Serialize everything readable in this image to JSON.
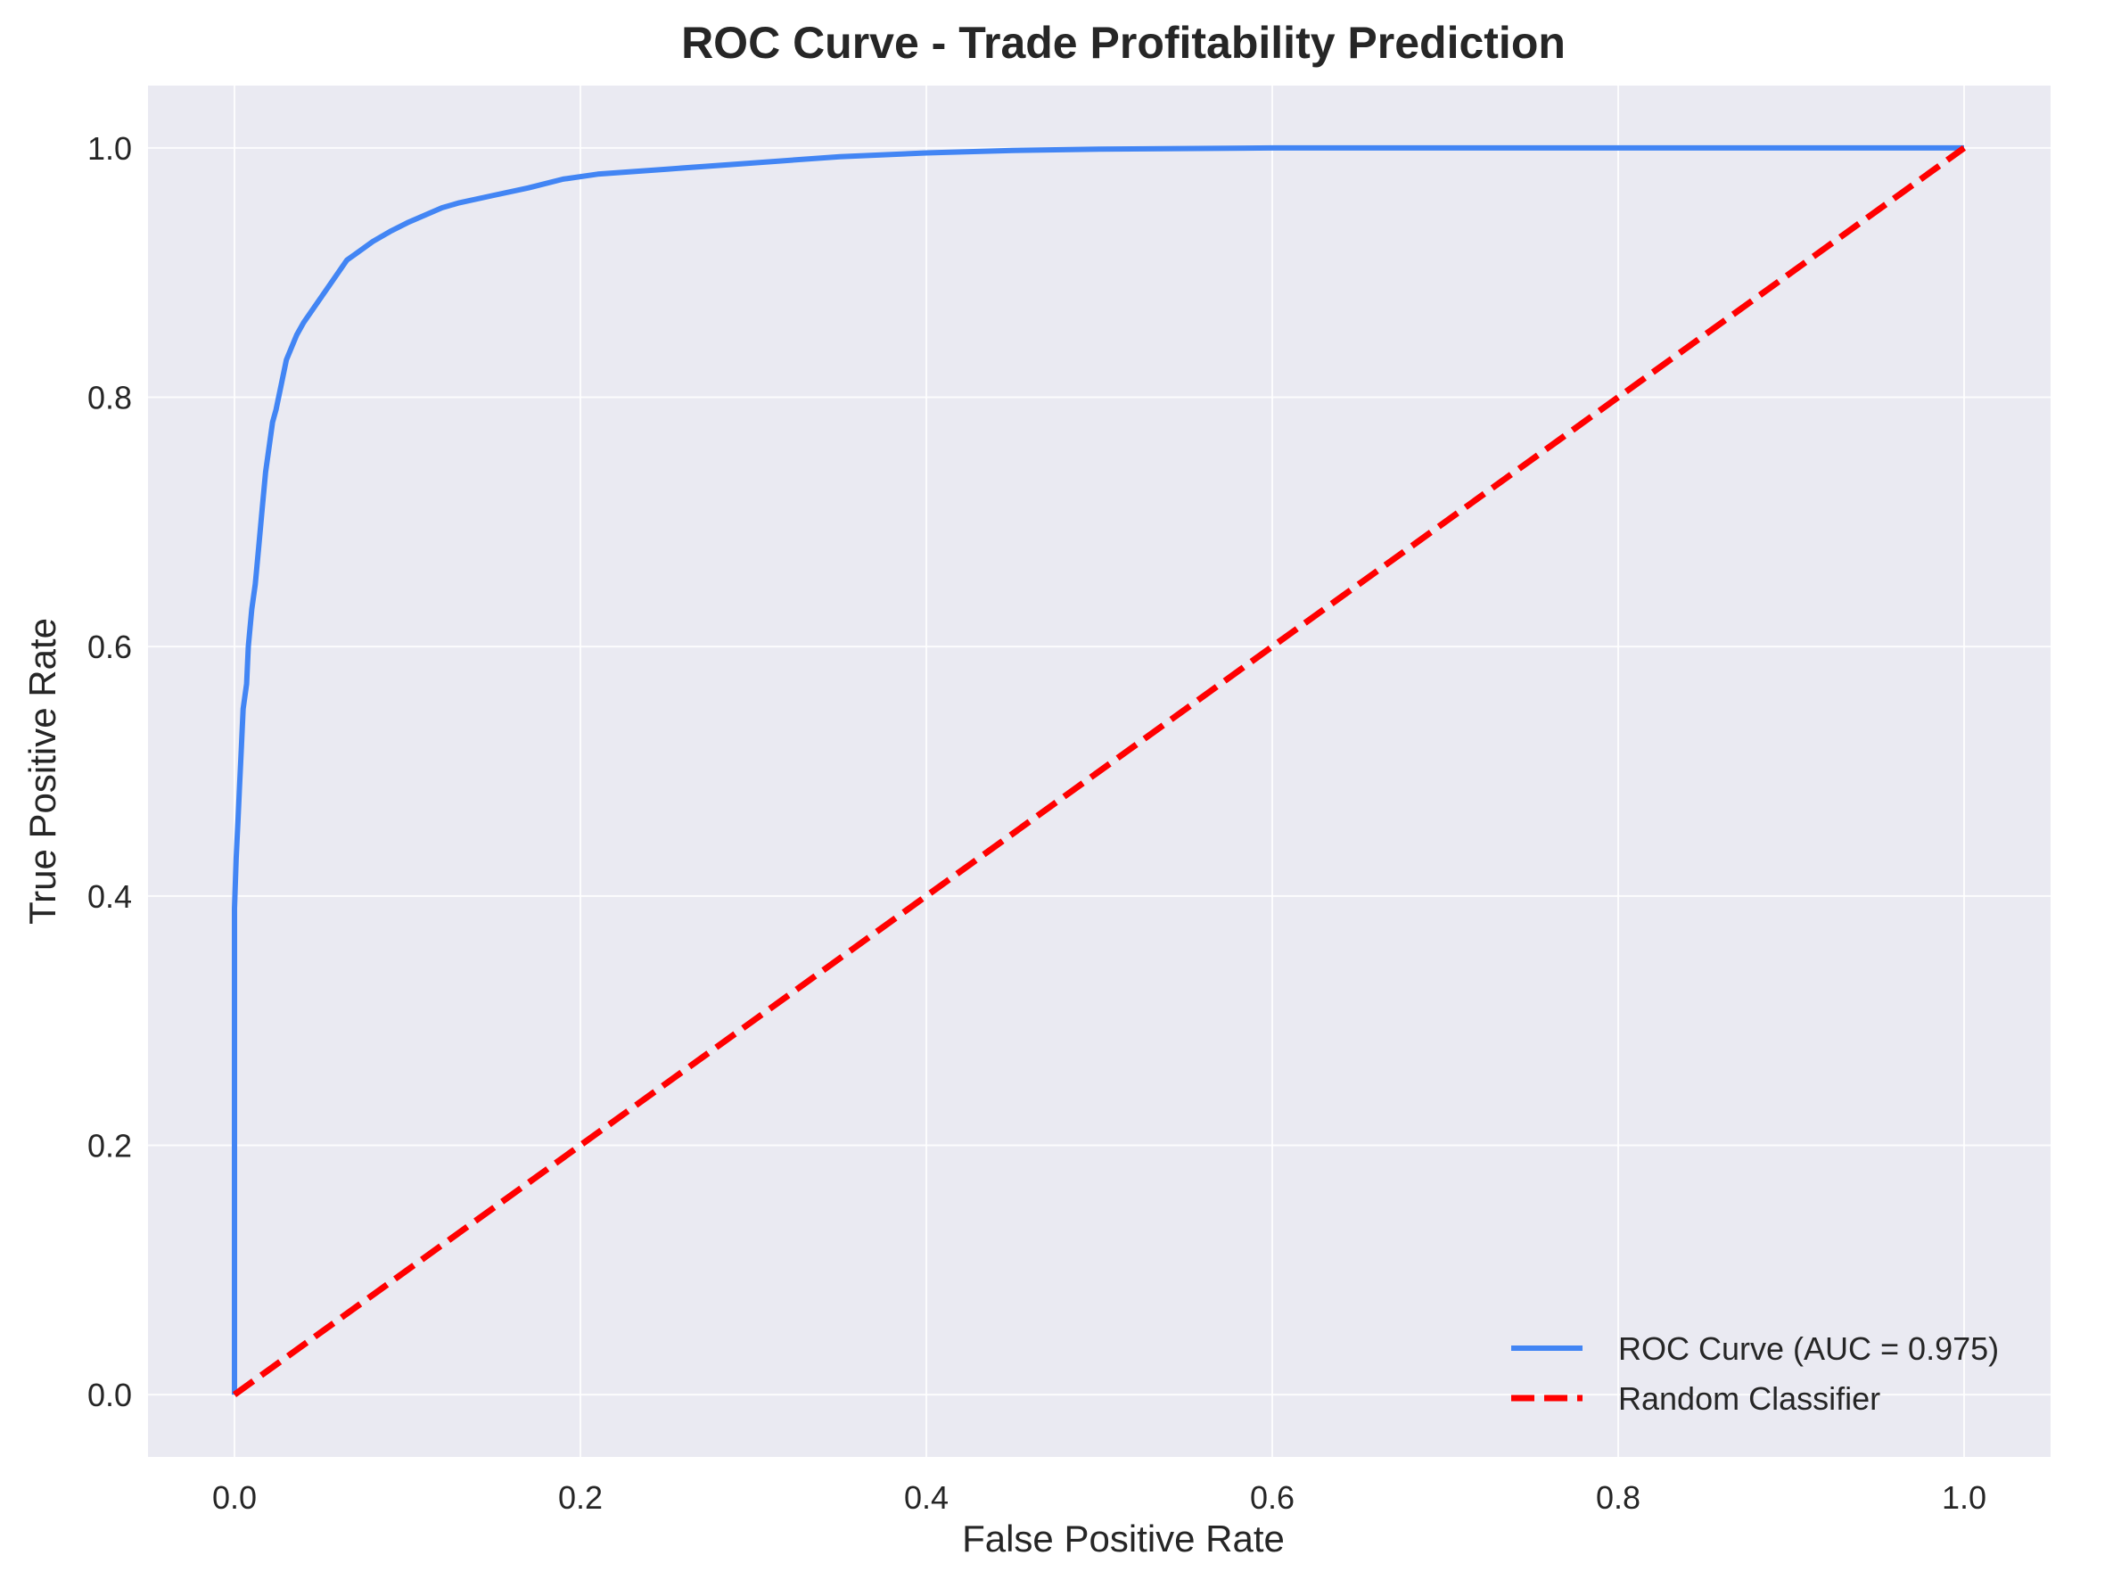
{
  "chart_data": {
    "type": "line",
    "title": "ROC Curve - Trade Profitability Prediction",
    "xlabel": "False Positive Rate",
    "ylabel": "True Positive Rate",
    "xlim": [
      -0.05,
      1.05
    ],
    "ylim": [
      -0.05,
      1.05
    ],
    "xticks": [
      0.0,
      0.2,
      0.4,
      0.6,
      0.8,
      1.0
    ],
    "xtick_labels": [
      "0.0",
      "0.2",
      "0.4",
      "0.6",
      "0.8",
      "1.0"
    ],
    "yticks": [
      0.0,
      0.2,
      0.4,
      0.6,
      0.8,
      1.0
    ],
    "ytick_labels": [
      "0.0",
      "0.2",
      "0.4",
      "0.6",
      "0.8",
      "1.0"
    ],
    "grid": true,
    "legend_position": "lower-right",
    "background_color": "#eaeaf2",
    "series": [
      {
        "name": "ROC Curve (AUC = 0.975)",
        "color": "#4285f4",
        "style": "solid",
        "x": [
          0.0,
          0.0,
          0.0,
          0.0,
          0.001,
          0.002,
          0.003,
          0.004,
          0.005,
          0.007,
          0.008,
          0.01,
          0.012,
          0.014,
          0.016,
          0.018,
          0.02,
          0.022,
          0.024,
          0.027,
          0.03,
          0.033,
          0.036,
          0.04,
          0.045,
          0.05,
          0.055,
          0.06,
          0.065,
          0.07,
          0.075,
          0.08,
          0.09,
          0.1,
          0.11,
          0.12,
          0.13,
          0.15,
          0.17,
          0.19,
          0.21,
          0.25,
          0.3,
          0.35,
          0.4,
          0.45,
          0.5,
          0.6,
          0.8,
          1.0
        ],
        "y": [
          0.0,
          0.2,
          0.35,
          0.39,
          0.43,
          0.46,
          0.49,
          0.52,
          0.55,
          0.57,
          0.6,
          0.63,
          0.65,
          0.68,
          0.71,
          0.74,
          0.76,
          0.78,
          0.79,
          0.81,
          0.83,
          0.84,
          0.85,
          0.86,
          0.87,
          0.88,
          0.89,
          0.9,
          0.91,
          0.915,
          0.92,
          0.925,
          0.933,
          0.94,
          0.946,
          0.952,
          0.956,
          0.962,
          0.968,
          0.975,
          0.979,
          0.983,
          0.988,
          0.993,
          0.996,
          0.998,
          0.999,
          1.0,
          1.0,
          1.0
        ]
      },
      {
        "name": "Random Classifier",
        "color": "#ff0000",
        "style": "dashed",
        "x": [
          0.0,
          1.0
        ],
        "y": [
          0.0,
          1.0
        ]
      }
    ]
  }
}
